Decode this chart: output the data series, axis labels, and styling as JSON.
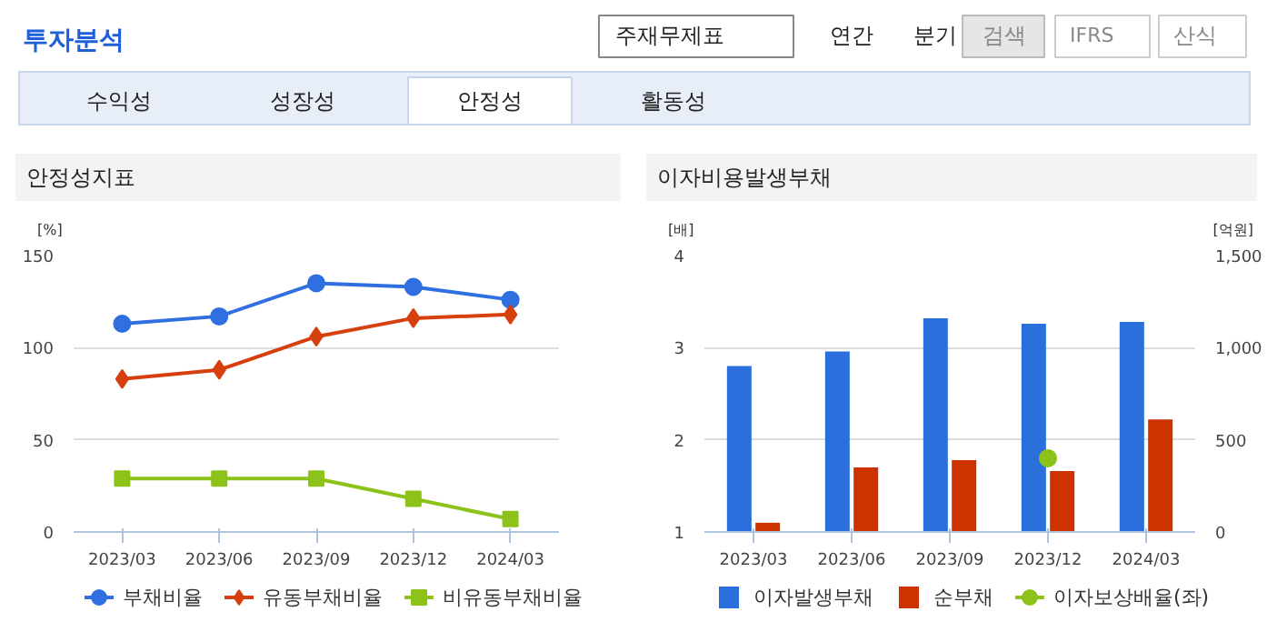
{
  "chart_data": [
    {
      "type": "other",
      "annotations": [
        "투자분석",
        "주재무제표",
        "연간",
        "분기",
        "검색",
        "IFRS",
        "산식",
        "수익성",
        "성장성",
        "안정성",
        "활동성"
      ]
    },
    {
      "type": "line",
      "title": "안정성지표",
      "ylabel": "[%]",
      "categories": [
        "2023/03",
        "2023/06",
        "2023/09",
        "2023/12",
        "2024/03"
      ],
      "ylim": [
        0,
        150
      ],
      "yticks": [
        0,
        50,
        100,
        150
      ],
      "grid": "y",
      "legend": "bottom",
      "line_style": "solid",
      "series": [
        {
          "name": "부채비율",
          "color": "#2f6fe0",
          "marker": "circle",
          "values": [
            113,
            117,
            135,
            133,
            126
          ]
        },
        {
          "name": "유동부채비율",
          "color": "#d6400f",
          "marker": "diamond",
          "values": [
            83,
            88,
            106,
            116,
            118
          ]
        },
        {
          "name": "비유동부채비율",
          "color": "#8cc21a",
          "marker": "square",
          "values": [
            29,
            29,
            29,
            18,
            7
          ]
        }
      ]
    },
    {
      "type": "bar",
      "title": "이자비용발생부채",
      "ylabel": "[배]",
      "y2label": "[억원]",
      "categories": [
        "2023/03",
        "2023/06",
        "2023/09",
        "2023/12",
        "2024/03"
      ],
      "ylim": [
        1,
        4
      ],
      "yticks": [
        1,
        2,
        3,
        4
      ],
      "y2lim": [
        0,
        1500
      ],
      "y2ticks": [
        0,
        500,
        {
          "value": 1000,
          "label": "1,000"
        },
        {
          "value": 1500,
          "label": "1,500"
        }
      ],
      "grid": "y",
      "legend": "bottom",
      "series": [
        {
          "name": "이자발생부채",
          "color": "#2a6fdc",
          "axis": "y2",
          "values": [
            900,
            980,
            1160,
            1130,
            1140
          ]
        },
        {
          "name": "순부채",
          "color": "#cc3300",
          "axis": "y2",
          "values": [
            50,
            350,
            390,
            330,
            610
          ]
        },
        {
          "name": "이자보상배율(좌)",
          "type": "scatter",
          "marker": "circle",
          "color": "#8cc21a",
          "axis": "y",
          "values": [
            null,
            null,
            null,
            1.8,
            null
          ]
        }
      ]
    }
  ]
}
